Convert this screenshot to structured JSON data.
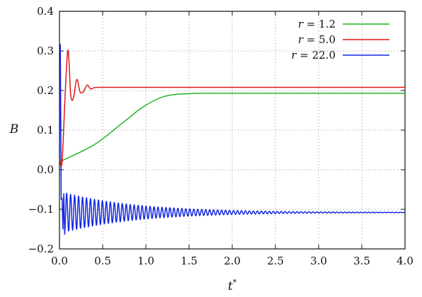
{
  "chart_data": {
    "type": "line",
    "xlabel": "t*",
    "ylabel": "B",
    "xlim": [
      0.0,
      4.0
    ],
    "ylim": [
      -0.2,
      0.4
    ],
    "xticks": [
      "0.0",
      "0.5",
      "1.0",
      "1.5",
      "2.0",
      "2.5",
      "3.0",
      "3.5",
      "4.0"
    ],
    "yticks": [
      "−0.2",
      "−0.1",
      "0.0",
      "0.1",
      "0.2",
      "0.3",
      "0.4"
    ],
    "grid": true,
    "legend_position": "top-right",
    "series": [
      {
        "name": "r = 1.2",
        "color": "#22b522",
        "x": [
          0.0,
          0.01,
          0.05,
          0.1,
          0.2,
          0.3,
          0.4,
          0.5,
          0.6,
          0.7,
          0.8,
          0.9,
          1.0,
          1.1,
          1.2,
          1.3,
          1.4,
          1.5,
          1.6,
          1.8,
          2.0,
          2.5,
          3.0,
          3.5,
          4.0
        ],
        "y": [
          0.03,
          0.02,
          0.025,
          0.03,
          0.04,
          0.051,
          0.063,
          0.078,
          0.095,
          0.113,
          0.13,
          0.148,
          0.163,
          0.175,
          0.184,
          0.189,
          0.191,
          0.192,
          0.193,
          0.193,
          0.193,
          0.193,
          0.193,
          0.193,
          0.193
        ]
      },
      {
        "name": "r = 5.0",
        "color": "#e01818",
        "x": [
          0.0,
          0.03,
          0.07,
          0.1,
          0.13,
          0.16,
          0.2,
          0.24,
          0.28,
          0.32,
          0.36,
          0.4,
          0.45,
          0.5,
          1.0,
          2.0,
          3.0,
          4.0
        ],
        "y": [
          0.03,
          0.02,
          0.21,
          0.302,
          0.19,
          0.18,
          0.228,
          0.196,
          0.198,
          0.214,
          0.204,
          0.207,
          0.208,
          0.208,
          0.208,
          0.208,
          0.208,
          0.208
        ]
      },
      {
        "name": "r = 22.0",
        "color": "#1428e0",
        "x": [
          0.0,
          0.01,
          0.02,
          0.03,
          0.04,
          0.05,
          0.06
        ],
        "y": [
          0.03,
          0.316,
          -0.075,
          -0.072,
          -0.15,
          -0.06,
          -0.163
        ],
        "oscillation": {
          "start": 0.06,
          "end": 4.0,
          "center": -0.108,
          "initial_amplitude": 0.05,
          "period": 0.046
        }
      }
    ]
  }
}
